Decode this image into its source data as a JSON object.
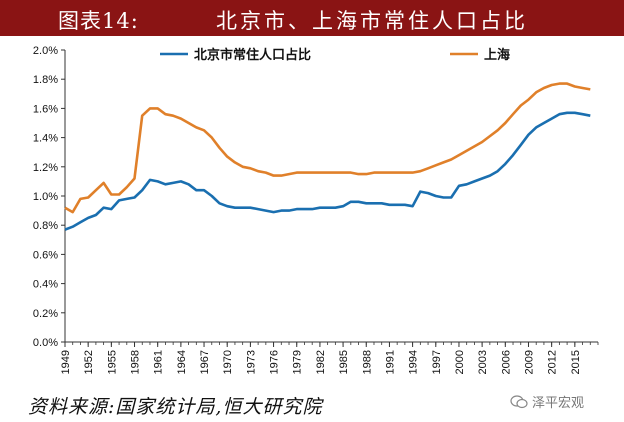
{
  "header": {
    "figure_label": "图表14:",
    "title": "北京市、上海市常住人口占比"
  },
  "source": "资料来源:国家统计局,恒大研究院",
  "watermark": "泽平宏观",
  "colors": {
    "beijing": "#1a6fb0",
    "shanghai": "#e0802a",
    "header_bg": "#8a1414"
  },
  "chart_data": {
    "type": "line",
    "title": "",
    "ylim": [
      0,
      2.0
    ],
    "yticks": [
      "0.0%",
      "0.2%",
      "0.4%",
      "0.6%",
      "0.8%",
      "1.0%",
      "1.2%",
      "1.4%",
      "1.6%",
      "1.8%",
      "2.0%"
    ],
    "xlim": [
      1949,
      2018
    ],
    "xticks": [
      "1949",
      "1952",
      "1955",
      "1958",
      "1961",
      "1964",
      "1967",
      "1970",
      "1973",
      "1976",
      "1979",
      "1982",
      "1985",
      "1988",
      "1991",
      "1994",
      "1997",
      "2000",
      "2003",
      "2006",
      "2009",
      "2012",
      "2015"
    ],
    "grid": false,
    "legend": "top",
    "series": [
      {
        "name": "北京市常住人口占比",
        "color": "#1a6fb0",
        "points": [
          [
            1949,
            0.77
          ],
          [
            1950,
            0.79
          ],
          [
            1951,
            0.82
          ],
          [
            1952,
            0.85
          ],
          [
            1953,
            0.87
          ],
          [
            1954,
            0.92
          ],
          [
            1955,
            0.91
          ],
          [
            1956,
            0.97
          ],
          [
            1957,
            0.98
          ],
          [
            1958,
            0.99
          ],
          [
            1959,
            1.04
          ],
          [
            1960,
            1.11
          ],
          [
            1961,
            1.1
          ],
          [
            1962,
            1.08
          ],
          [
            1963,
            1.09
          ],
          [
            1964,
            1.1
          ],
          [
            1965,
            1.08
          ],
          [
            1966,
            1.04
          ],
          [
            1967,
            1.04
          ],
          [
            1968,
            1.0
          ],
          [
            1969,
            0.95
          ],
          [
            1970,
            0.93
          ],
          [
            1971,
            0.92
          ],
          [
            1972,
            0.92
          ],
          [
            1973,
            0.92
          ],
          [
            1974,
            0.91
          ],
          [
            1975,
            0.9
          ],
          [
            1976,
            0.89
          ],
          [
            1977,
            0.9
          ],
          [
            1978,
            0.9
          ],
          [
            1979,
            0.91
          ],
          [
            1980,
            0.91
          ],
          [
            1981,
            0.91
          ],
          [
            1982,
            0.92
          ],
          [
            1983,
            0.92
          ],
          [
            1984,
            0.92
          ],
          [
            1985,
            0.93
          ],
          [
            1986,
            0.96
          ],
          [
            1987,
            0.96
          ],
          [
            1988,
            0.95
          ],
          [
            1989,
            0.95
          ],
          [
            1990,
            0.95
          ],
          [
            1991,
            0.94
          ],
          [
            1992,
            0.94
          ],
          [
            1993,
            0.94
          ],
          [
            1994,
            0.93
          ],
          [
            1995,
            1.03
          ],
          [
            1996,
            1.02
          ],
          [
            1997,
            1.0
          ],
          [
            1998,
            0.99
          ],
          [
            1999,
            0.99
          ],
          [
            2000,
            1.07
          ],
          [
            2001,
            1.08
          ],
          [
            2002,
            1.1
          ],
          [
            2003,
            1.12
          ],
          [
            2004,
            1.14
          ],
          [
            2005,
            1.17
          ],
          [
            2006,
            1.22
          ],
          [
            2007,
            1.28
          ],
          [
            2008,
            1.35
          ],
          [
            2009,
            1.42
          ],
          [
            2010,
            1.47
          ],
          [
            2011,
            1.5
          ],
          [
            2012,
            1.53
          ],
          [
            2013,
            1.56
          ],
          [
            2014,
            1.57
          ],
          [
            2015,
            1.57
          ],
          [
            2016,
            1.56
          ],
          [
            2017,
            1.55
          ]
        ]
      },
      {
        "name": "上海",
        "color": "#e0802a",
        "points": [
          [
            1949,
            0.92
          ],
          [
            1950,
            0.89
          ],
          [
            1951,
            0.98
          ],
          [
            1952,
            0.99
          ],
          [
            1953,
            1.04
          ],
          [
            1954,
            1.09
          ],
          [
            1955,
            1.01
          ],
          [
            1956,
            1.01
          ],
          [
            1957,
            1.06
          ],
          [
            1958,
            1.12
          ],
          [
            1959,
            1.55
          ],
          [
            1960,
            1.6
          ],
          [
            1961,
            1.6
          ],
          [
            1962,
            1.56
          ],
          [
            1963,
            1.55
          ],
          [
            1964,
            1.53
          ],
          [
            1965,
            1.5
          ],
          [
            1966,
            1.47
          ],
          [
            1967,
            1.45
          ],
          [
            1968,
            1.4
          ],
          [
            1969,
            1.33
          ],
          [
            1970,
            1.27
          ],
          [
            1971,
            1.23
          ],
          [
            1972,
            1.2
          ],
          [
            1973,
            1.19
          ],
          [
            1974,
            1.17
          ],
          [
            1975,
            1.16
          ],
          [
            1976,
            1.14
          ],
          [
            1977,
            1.14
          ],
          [
            1978,
            1.15
          ],
          [
            1979,
            1.16
          ],
          [
            1980,
            1.16
          ],
          [
            1981,
            1.16
          ],
          [
            1982,
            1.16
          ],
          [
            1983,
            1.16
          ],
          [
            1984,
            1.16
          ],
          [
            1985,
            1.16
          ],
          [
            1986,
            1.16
          ],
          [
            1987,
            1.15
          ],
          [
            1988,
            1.15
          ],
          [
            1989,
            1.16
          ],
          [
            1990,
            1.16
          ],
          [
            1991,
            1.16
          ],
          [
            1992,
            1.16
          ],
          [
            1993,
            1.16
          ],
          [
            1994,
            1.16
          ],
          [
            1995,
            1.17
          ],
          [
            1996,
            1.19
          ],
          [
            1997,
            1.21
          ],
          [
            1998,
            1.23
          ],
          [
            1999,
            1.25
          ],
          [
            2000,
            1.28
          ],
          [
            2001,
            1.31
          ],
          [
            2002,
            1.34
          ],
          [
            2003,
            1.37
          ],
          [
            2004,
            1.41
          ],
          [
            2005,
            1.45
          ],
          [
            2006,
            1.5
          ],
          [
            2007,
            1.56
          ],
          [
            2008,
            1.62
          ],
          [
            2009,
            1.66
          ],
          [
            2010,
            1.71
          ],
          [
            2011,
            1.74
          ],
          [
            2012,
            1.76
          ],
          [
            2013,
            1.77
          ],
          [
            2014,
            1.77
          ],
          [
            2015,
            1.75
          ],
          [
            2016,
            1.74
          ],
          [
            2017,
            1.73
          ]
        ]
      }
    ]
  }
}
